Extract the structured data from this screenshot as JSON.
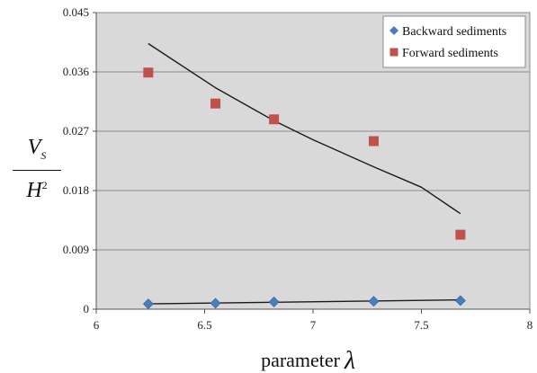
{
  "chart_data": {
    "type": "scatter",
    "xlabel": "parameter",
    "xlabel_symbol": "λ",
    "ylabel": {
      "numerator": "V",
      "numerator_sub": "S",
      "denominator": "H",
      "denominator_sup": "2"
    },
    "xlim": [
      6,
      8
    ],
    "ylim": [
      0,
      0.045
    ],
    "xticks": [
      "6",
      "6.5",
      "7",
      "7.5",
      "8"
    ],
    "yticks": [
      "0",
      "0.009",
      "0.018",
      "0.027",
      "0.036",
      "0.045"
    ],
    "grid": "horizontal",
    "legend_position": "top-right",
    "plot_background": "#d9d9d9",
    "series": [
      {
        "name": "Backward sediments",
        "marker": "diamond",
        "color": "#4a7ebb",
        "points": [
          [
            6.24,
            0.0008
          ],
          [
            6.55,
            0.0009
          ],
          [
            6.82,
            0.0011
          ],
          [
            7.28,
            0.0012
          ],
          [
            7.68,
            0.0013
          ]
        ],
        "trendline": [
          [
            6.24,
            0.0008
          ],
          [
            7.68,
            0.0014
          ]
        ]
      },
      {
        "name": "Forward sediments",
        "marker": "square",
        "color": "#c0504d",
        "points": [
          [
            6.24,
            0.0359
          ],
          [
            6.55,
            0.0312
          ],
          [
            6.82,
            0.0288
          ],
          [
            7.28,
            0.0255
          ],
          [
            7.68,
            0.0113
          ]
        ],
        "trendline": [
          [
            6.24,
            0.0403
          ],
          [
            6.55,
            0.0336
          ],
          [
            6.82,
            0.0286
          ],
          [
            7.0,
            0.0257
          ],
          [
            7.28,
            0.0216
          ],
          [
            7.5,
            0.0185
          ],
          [
            7.68,
            0.0145
          ]
        ]
      }
    ]
  }
}
